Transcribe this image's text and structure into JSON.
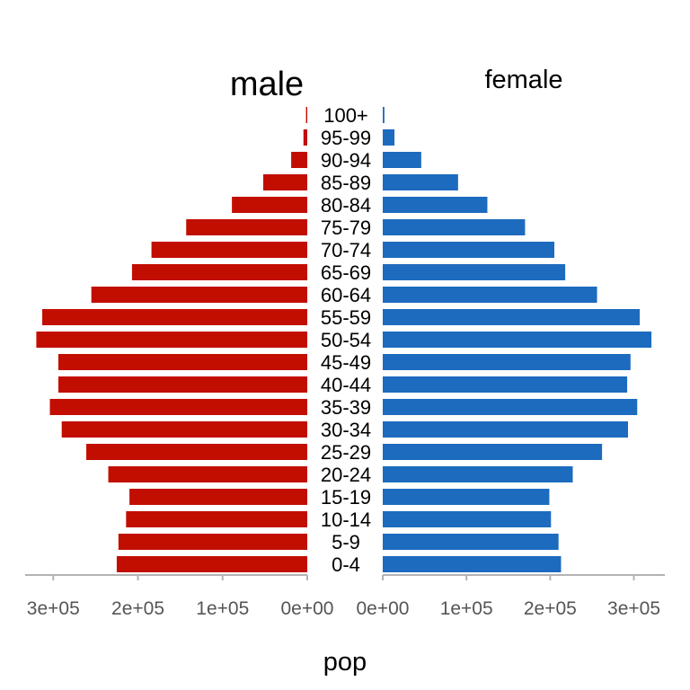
{
  "chart_data": {
    "type": "bar",
    "orientation": "horizontal",
    "layout": "population pyramid",
    "categories": [
      "0-4",
      "5-9",
      "10-14",
      "15-19",
      "20-24",
      "25-29",
      "30-34",
      "35-39",
      "40-44",
      "45-49",
      "50-54",
      "55-59",
      "60-64",
      "65-69",
      "70-74",
      "75-79",
      "80-84",
      "85-89",
      "90-94",
      "95-99",
      "100+"
    ],
    "panels": [
      {
        "title": "male",
        "color": "#c20e00",
        "xlim": [
          0,
          330000
        ],
        "reversed": true,
        "ticks": [
          300000,
          200000,
          100000,
          0
        ],
        "tick_labels": [
          "3e+05",
          "2e+05",
          "1e+05",
          "0e+00"
        ],
        "values": [
          225000,
          223000,
          214000,
          210000,
          235000,
          261000,
          290000,
          304000,
          294000,
          294000,
          320000,
          313000,
          255000,
          207000,
          184000,
          143000,
          89000,
          52000,
          19000,
          4500,
          1500
        ]
      },
      {
        "title": "female",
        "color": "#1c6bbf",
        "xlim": [
          0,
          337000
        ],
        "reversed": false,
        "ticks": [
          0,
          100000,
          200000,
          300000
        ],
        "tick_labels": [
          "0e+00",
          "1e+05",
          "2e+05",
          "3e+05"
        ],
        "values": [
          213000,
          210000,
          201000,
          199000,
          227000,
          262000,
          293000,
          304000,
          292000,
          296000,
          321000,
          307000,
          256000,
          218000,
          205000,
          170000,
          125000,
          90000,
          46000,
          14000,
          2000
        ]
      }
    ],
    "xlabel": "pop",
    "ylabel": "",
    "legend": "none",
    "grid": false
  }
}
